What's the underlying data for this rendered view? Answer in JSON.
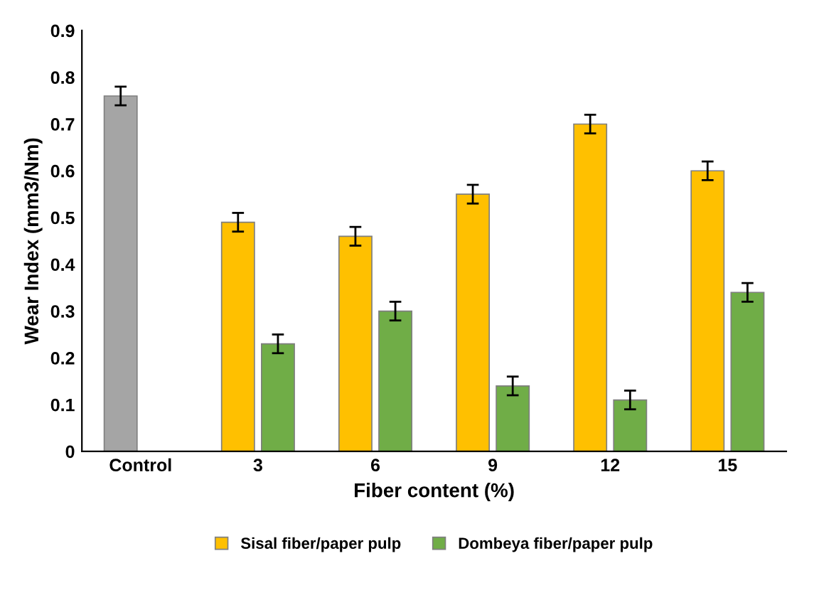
{
  "chart_data": {
    "type": "bar",
    "xlabel": "Fiber content (%)",
    "ylabel": "Wear Index (mm3/Nm)",
    "categories": [
      "Control",
      "3",
      "6",
      "9",
      "12",
      "15"
    ],
    "series": [
      {
        "name": "Sisal fiber/paper pulp",
        "color": "#ffc000",
        "colors": [
          "#a5a5a5",
          "#ffc000",
          "#ffc000",
          "#ffc000",
          "#ffc000",
          "#ffc000"
        ],
        "values": [
          0.76,
          0.49,
          0.46,
          0.55,
          0.7,
          0.6
        ],
        "errors": [
          0.02,
          0.02,
          0.02,
          0.02,
          0.02,
          0.02
        ]
      },
      {
        "name": "Dombeya fiber/paper pulp",
        "color": "#70ad47",
        "values": [
          null,
          0.23,
          0.3,
          0.14,
          0.11,
          0.34
        ],
        "errors": [
          null,
          0.02,
          0.02,
          0.02,
          0.02,
          0.02
        ]
      }
    ],
    "ylim": [
      0,
      0.9
    ],
    "yticks": [
      0,
      0.1,
      0.2,
      0.3,
      0.4,
      0.5,
      0.6,
      0.7,
      0.8,
      0.9
    ],
    "grid": false,
    "legend": "bottom"
  }
}
